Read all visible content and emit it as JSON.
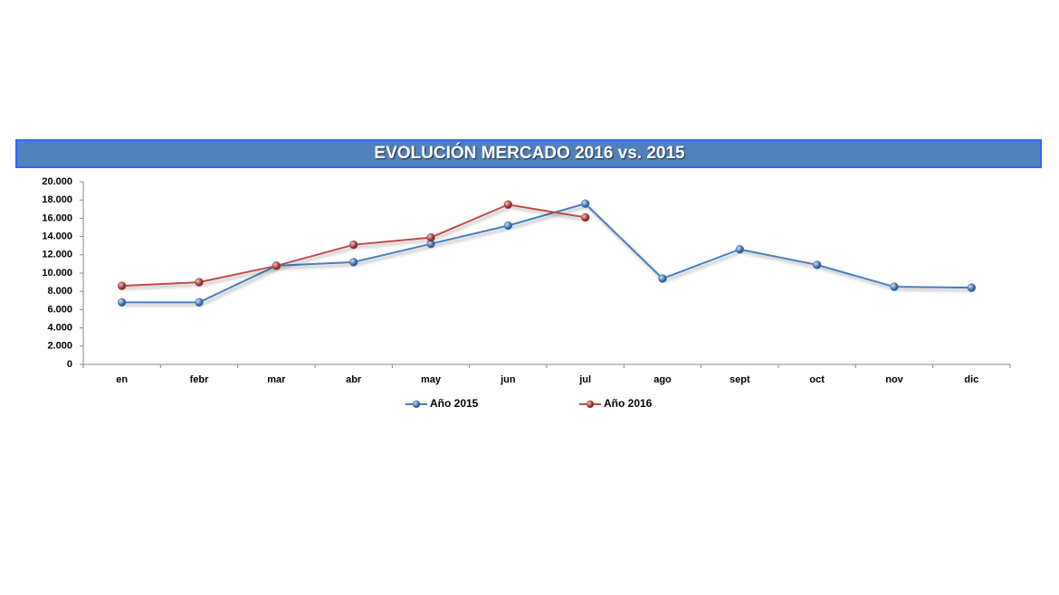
{
  "chart_data": {
    "type": "line",
    "title": "EVOLUCIÓN MERCADO 2016 vs. 2015",
    "categories": [
      "en",
      "febr",
      "mar",
      "abr",
      "may",
      "jun",
      "jul",
      "ago",
      "sept",
      "oct",
      "nov",
      "dic"
    ],
    "series": [
      {
        "name": "Año 2015",
        "color": "#4a7ebb",
        "values": [
          6800,
          6800,
          10800,
          11200,
          13200,
          15200,
          17600,
          9400,
          12600,
          10900,
          8500,
          8400
        ]
      },
      {
        "name": "Año 2016",
        "color": "#be4b48",
        "values": [
          8600,
          9000,
          10800,
          13100,
          13900,
          17500,
          16100,
          null,
          null,
          null,
          null,
          null
        ]
      }
    ],
    "ylim": [
      0,
      20000
    ],
    "yticks": [
      0,
      {
        "value": 2000,
        "label": "2.000"
      },
      {
        "value": 4000,
        "label": "4.000"
      },
      {
        "value": 6000,
        "label": "6.000"
      },
      {
        "value": 8000,
        "label": "8.000"
      },
      {
        "value": 10000,
        "label": "10.000"
      },
      {
        "value": 12000,
        "label": "12.000"
      },
      {
        "value": 14000,
        "label": "14.000"
      },
      {
        "value": 16000,
        "label": "16.000"
      },
      {
        "value": 18000,
        "label": "18.000"
      },
      {
        "value": 20000,
        "label": "20.000"
      }
    ],
    "grid": false,
    "legend": "bottom"
  }
}
